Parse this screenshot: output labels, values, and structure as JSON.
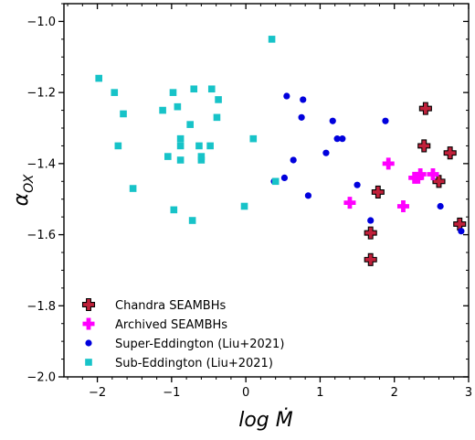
{
  "chart_data": {
    "type": "scatter",
    "title": "",
    "xlabel": "log Ṁ",
    "ylabel": "αOX",
    "xlim": [
      -2.45,
      3.0
    ],
    "ylim": [
      -2.0,
      -0.95
    ],
    "xticks": [
      -2,
      -1,
      0,
      1,
      2,
      3
    ],
    "xtick_labels": [
      "−2",
      "−1",
      "0",
      "1",
      "2",
      "3"
    ],
    "yticks": [
      -2.0,
      -1.8,
      -1.6,
      -1.4,
      -1.2,
      -1.0
    ],
    "ytick_labels": [
      "−2.0",
      "−1.8",
      "−1.6",
      "−1.4",
      "−1.2",
      "−1.0"
    ],
    "grid": false,
    "legend_position": "bottom-left",
    "series": [
      {
        "name": "Chandra SEAMBHs",
        "marker": "plus-outlined",
        "color": "#c0203a",
        "edge_color": "#000000",
        "points": [
          [
            2.42,
            -1.245
          ],
          [
            2.4,
            -1.35
          ],
          [
            2.6,
            -1.45
          ],
          [
            2.75,
            -1.37
          ],
          [
            1.78,
            -1.48
          ],
          [
            1.68,
            -1.595
          ],
          [
            1.68,
            -1.67
          ],
          [
            2.88,
            -1.57
          ]
        ]
      },
      {
        "name": "Archived SEAMBHs",
        "marker": "plus",
        "color": "#ff00ff",
        "points": [
          [
            1.92,
            -1.4
          ],
          [
            1.4,
            -1.51
          ],
          [
            2.12,
            -1.52
          ],
          [
            2.27,
            -1.44
          ],
          [
            2.35,
            -1.43
          ],
          [
            2.52,
            -1.43
          ],
          [
            2.32,
            -1.44
          ]
        ]
      },
      {
        "name": "Super-Eddington (Liu+2021)",
        "marker": "circle",
        "color": "#0000dd",
        "points": [
          [
            0.55,
            -1.21
          ],
          [
            0.77,
            -1.22
          ],
          [
            0.75,
            -1.27
          ],
          [
            1.17,
            -1.28
          ],
          [
            1.23,
            -1.33
          ],
          [
            1.3,
            -1.33
          ],
          [
            1.08,
            -1.37
          ],
          [
            0.64,
            -1.39
          ],
          [
            0.52,
            -1.44
          ],
          [
            0.38,
            -1.45
          ],
          [
            0.84,
            -1.49
          ],
          [
            1.5,
            -1.46
          ],
          [
            1.88,
            -1.28
          ],
          [
            1.68,
            -1.56
          ],
          [
            2.62,
            -1.52
          ],
          [
            2.9,
            -1.59
          ]
        ]
      },
      {
        "name": "Sub-Eddington (Liu+2021)",
        "marker": "square",
        "color": "#17c3c8",
        "points": [
          [
            -1.98,
            -1.16
          ],
          [
            -1.77,
            -1.2
          ],
          [
            -1.65,
            -1.26
          ],
          [
            -1.72,
            -1.35
          ],
          [
            -1.52,
            -1.47
          ],
          [
            -1.12,
            -1.25
          ],
          [
            -0.98,
            -1.2
          ],
          [
            -1.05,
            -1.38
          ],
          [
            -0.92,
            -1.24
          ],
          [
            -0.88,
            -1.33
          ],
          [
            -0.88,
            -1.35
          ],
          [
            -0.88,
            -1.39
          ],
          [
            -0.7,
            -1.19
          ],
          [
            -0.75,
            -1.29
          ],
          [
            -0.63,
            -1.35
          ],
          [
            -0.6,
            -1.39
          ],
          [
            -0.6,
            -1.38
          ],
          [
            -0.46,
            -1.19
          ],
          [
            -0.48,
            -1.35
          ],
          [
            -0.37,
            -1.22
          ],
          [
            -0.39,
            -1.27
          ],
          [
            -0.97,
            -1.53
          ],
          [
            -0.72,
            -1.56
          ],
          [
            -0.02,
            -1.52
          ],
          [
            0.1,
            -1.33
          ],
          [
            0.35,
            -1.05
          ],
          [
            0.4,
            -1.45
          ]
        ]
      }
    ]
  }
}
